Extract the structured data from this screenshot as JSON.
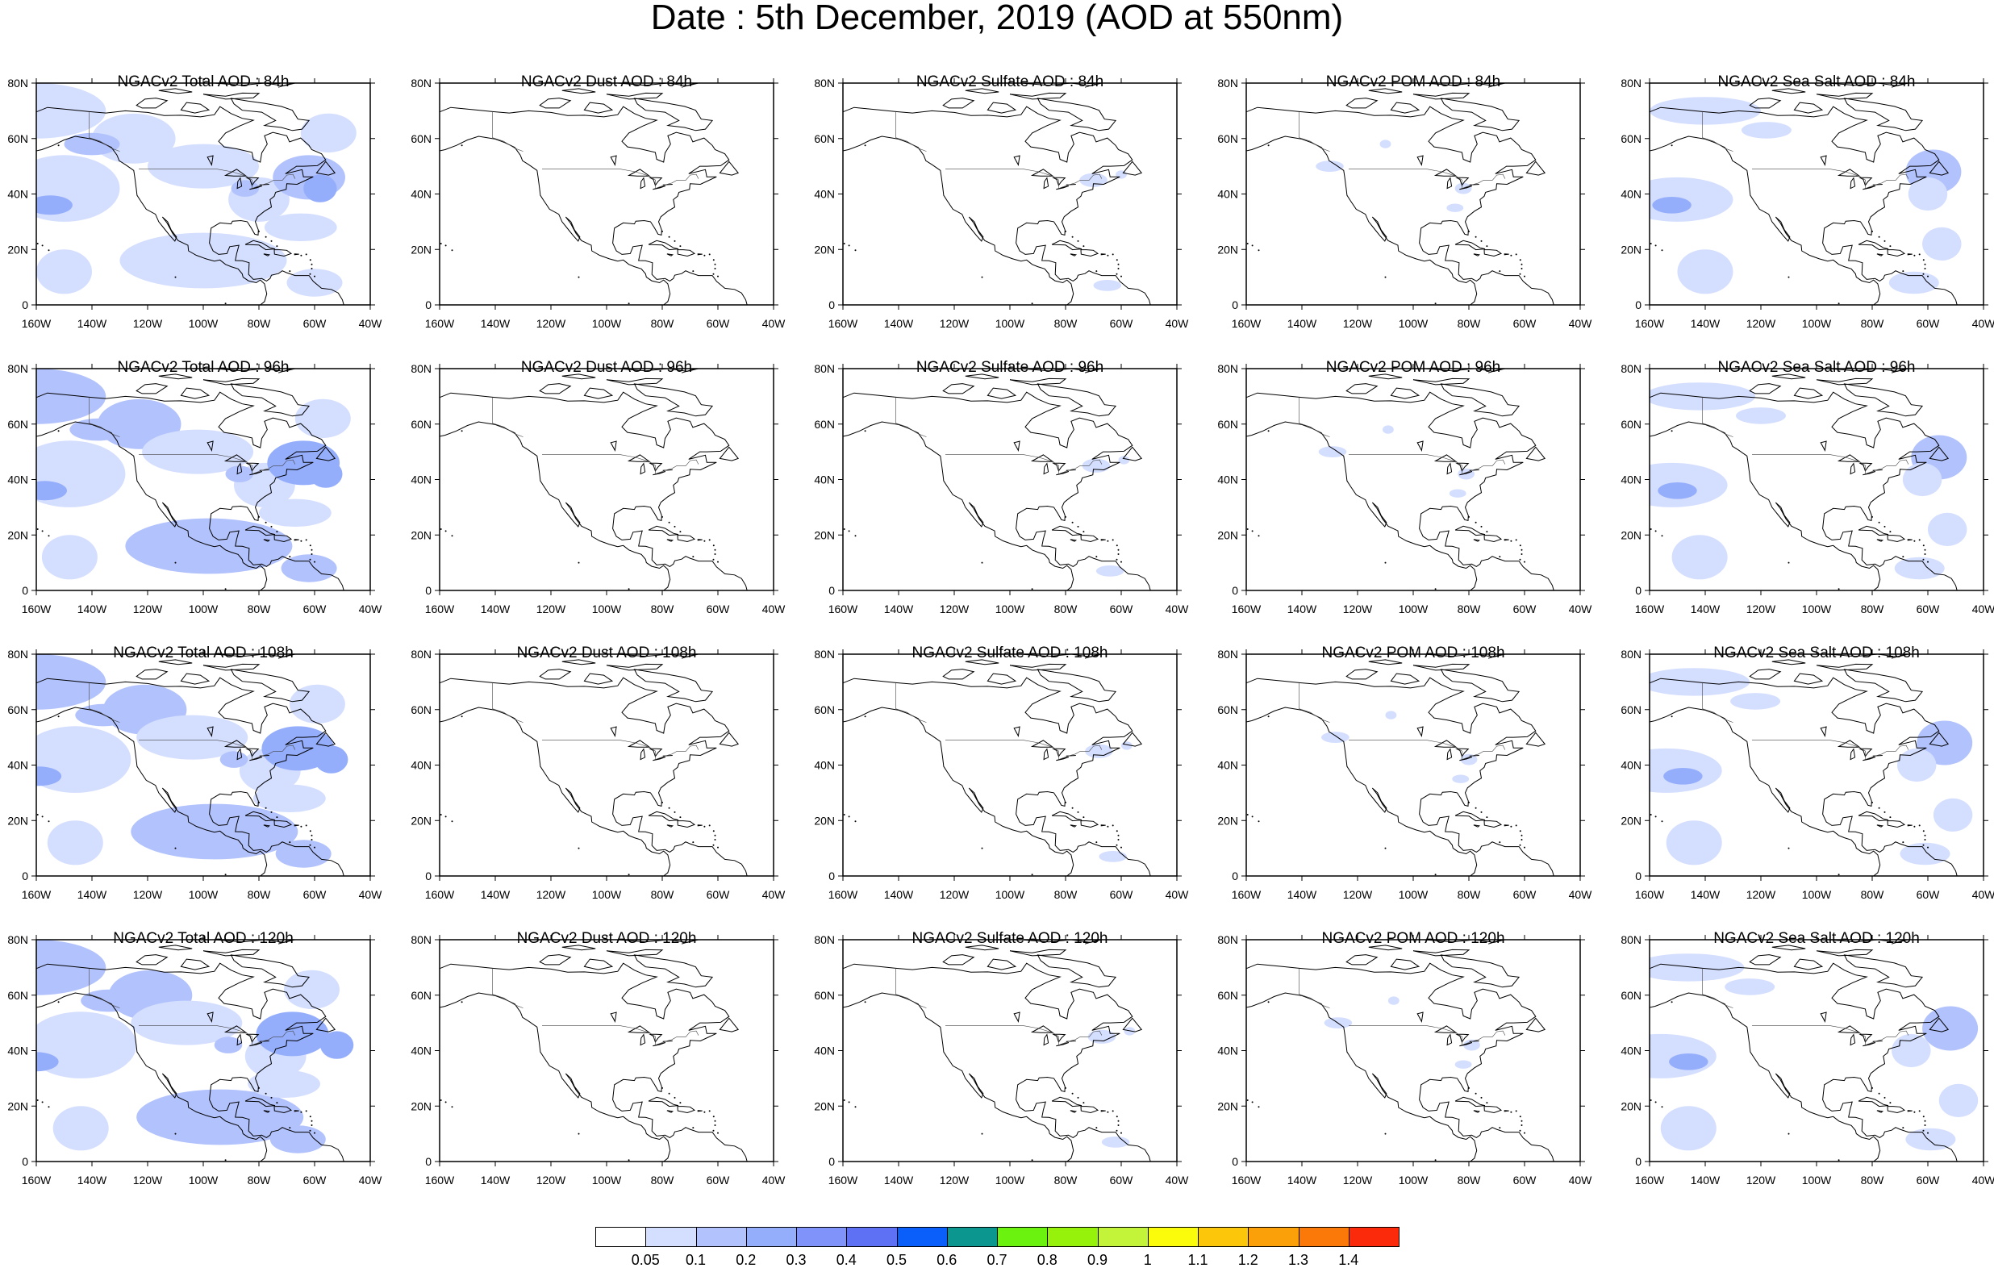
{
  "title": "Date : 5th December, 2019 (AOD at 550nm)",
  "panels": [
    {
      "title": "NGACv2 Total AOD : 84h",
      "species": "total",
      "forecast_hour": 84
    },
    {
      "title": "NGACv2 Dust AOD : 84h",
      "species": "dust",
      "forecast_hour": 84
    },
    {
      "title": "NGACv2 Sulfate AOD : 84h",
      "species": "sulfate",
      "forecast_hour": 84
    },
    {
      "title": "NGACv2 POM AOD : 84h",
      "species": "pom",
      "forecast_hour": 84
    },
    {
      "title": "NGACv2 Sea Salt AOD : 84h",
      "species": "seasalt",
      "forecast_hour": 84
    },
    {
      "title": "NGACv2 Total AOD : 96h",
      "species": "total",
      "forecast_hour": 96
    },
    {
      "title": "NGACv2 Dust AOD : 96h",
      "species": "dust",
      "forecast_hour": 96
    },
    {
      "title": "NGACv2 Sulfate AOD : 96h",
      "species": "sulfate",
      "forecast_hour": 96
    },
    {
      "title": "NGACv2 POM AOD : 96h",
      "species": "pom",
      "forecast_hour": 96
    },
    {
      "title": "NGACv2 Sea Salt AOD : 96h",
      "species": "seasalt",
      "forecast_hour": 96
    },
    {
      "title": "NGACv2 Total AOD : 108h",
      "species": "total",
      "forecast_hour": 108
    },
    {
      "title": "NGACv2 Dust AOD : 108h",
      "species": "dust",
      "forecast_hour": 108
    },
    {
      "title": "NGACv2 Sulfate AOD : 108h",
      "species": "sulfate",
      "forecast_hour": 108
    },
    {
      "title": "NGACv2 POM AOD : 108h",
      "species": "pom",
      "forecast_hour": 108
    },
    {
      "title": "NGACv2 Sea Salt AOD : 108h",
      "species": "seasalt",
      "forecast_hour": 108
    },
    {
      "title": "NGACv2 Total AOD : 120h",
      "species": "total",
      "forecast_hour": 120
    },
    {
      "title": "NGACv2 Dust AOD : 120h",
      "species": "dust",
      "forecast_hour": 120
    },
    {
      "title": "NGACv2 Sulfate AOD : 120h",
      "species": "sulfate",
      "forecast_hour": 120
    },
    {
      "title": "NGACv2 POM AOD : 120h",
      "species": "pom",
      "forecast_hour": 120
    },
    {
      "title": "NGACv2 Sea Salt  AOD : 120h",
      "species": "seasalt",
      "forecast_hour": 120
    }
  ],
  "axes": {
    "lon_ticks": [
      "160W",
      "140W",
      "120W",
      "100W",
      "80W",
      "60W",
      "40W"
    ],
    "lat_ticks": [
      "0",
      "20N",
      "40N",
      "60N",
      "80N"
    ],
    "lon_range": [
      -160,
      -40
    ],
    "lat_range": [
      0,
      80
    ]
  },
  "colorbar": {
    "levels": [
      "0.05",
      "0.1",
      "0.2",
      "0.3",
      "0.4",
      "0.5",
      "0.6",
      "0.7",
      "0.8",
      "0.9",
      "1",
      "1.1",
      "1.2",
      "1.3",
      "1.4"
    ],
    "colors": [
      "#ffffff",
      "#d4deff",
      "#b2c2fc",
      "#95aefc",
      "#7f93fb",
      "#5e70f3",
      "#0a5ef9",
      "#0b968f",
      "#6cf20f",
      "#96f20b",
      "#c4f43a",
      "#fafc0b",
      "#fcc60a",
      "#fca00a",
      "#fb7908",
      "#fa2a0a"
    ]
  }
}
